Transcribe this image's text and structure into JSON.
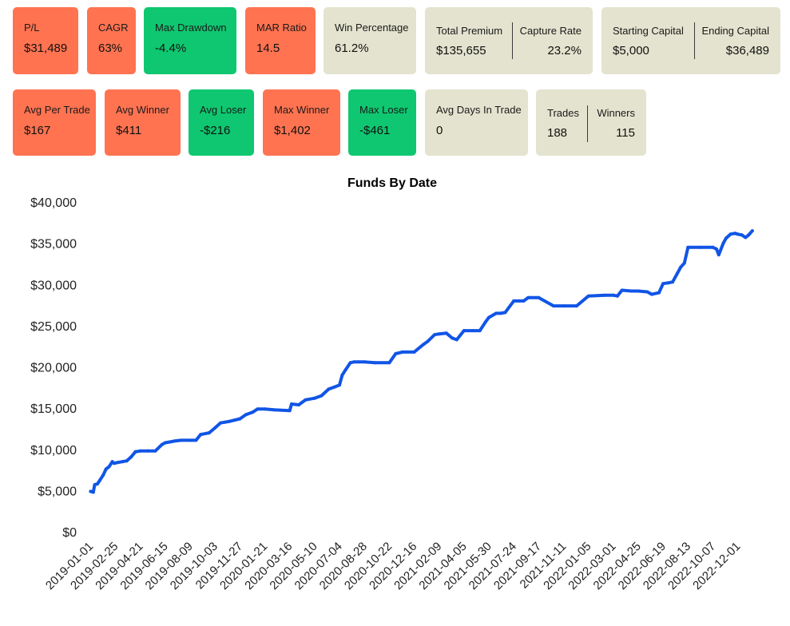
{
  "colors": {
    "orange": "#ff7351",
    "green": "#0fc770",
    "beige": "#e3e3cf",
    "line": "#1155e6"
  },
  "stats_row1": [
    {
      "key": "pl",
      "label": "P/L",
      "value": "$31,489",
      "color": "orange"
    },
    {
      "key": "cagr",
      "label": "CAGR",
      "value": "63%",
      "color": "orange"
    },
    {
      "key": "max_drawdown",
      "label": "Max Drawdown",
      "value": "-4.4%",
      "color": "green"
    },
    {
      "key": "mar_ratio",
      "label": "MAR Ratio",
      "value": "14.5",
      "color": "orange"
    },
    {
      "key": "win_percentage",
      "label": "Win Percentage",
      "value": "61.2%",
      "color": "beige"
    }
  ],
  "premium_card": {
    "left_label": "Total Premium",
    "left_value": "$135,655",
    "right_label": "Capture Rate",
    "right_value": "23.2%"
  },
  "capital_card": {
    "left_label": "Starting Capital",
    "left_value": "$5,000",
    "right_label": "Ending Capital",
    "right_value": "$36,489"
  },
  "stats_row2": [
    {
      "key": "avg_per_trade",
      "label": "Avg Per Trade",
      "value": "$167",
      "color": "orange"
    },
    {
      "key": "avg_winner",
      "label": "Avg Winner",
      "value": "$411",
      "color": "orange"
    },
    {
      "key": "avg_loser",
      "label": "Avg Loser",
      "value": "-$216",
      "color": "green"
    },
    {
      "key": "max_winner",
      "label": "Max Winner",
      "value": "$1,402",
      "color": "orange"
    },
    {
      "key": "max_loser",
      "label": "Max Loser",
      "value": "-$461",
      "color": "green"
    },
    {
      "key": "avg_days",
      "label": "Avg Days In Trade",
      "value": "0",
      "color": "beige"
    }
  ],
  "trades_card": {
    "left_label": "Trades",
    "left_value": "188",
    "right_label": "Winners",
    "right_value": "115"
  },
  "chart_data": {
    "type": "line",
    "title": "Funds By Date",
    "xlabel": "",
    "ylabel": "",
    "ylim": [
      0,
      40000
    ],
    "yticks": [
      0,
      5000,
      10000,
      15000,
      20000,
      25000,
      30000,
      35000,
      40000
    ],
    "ytick_labels": [
      "$0",
      "$5,000",
      "$10,000",
      "$15,000",
      "$20,000",
      "$25,000",
      "$30,000",
      "$35,000",
      "$40,000"
    ],
    "xticks": [
      "2019-01-01",
      "2019-02-25",
      "2019-04-21",
      "2019-06-15",
      "2019-08-09",
      "2019-10-03",
      "2019-11-27",
      "2020-01-21",
      "2020-03-16",
      "2020-05-10",
      "2020-07-04",
      "2020-08-28",
      "2020-10-22",
      "2020-12-16",
      "2021-02-09",
      "2021-04-05",
      "2021-05-30",
      "2021-07-24",
      "2021-09-17",
      "2021-11-11",
      "2022-01-05",
      "2022-03-01",
      "2022-04-25",
      "2022-06-19",
      "2022-08-13",
      "2022-10-07",
      "2022-12-01"
    ],
    "xlim": [
      "2018-12-26",
      "2023-01-13"
    ],
    "grid": false,
    "series": [
      {
        "color": "#1155e6",
        "x": [
          "2019-01-01",
          "2019-01-07",
          "2019-01-10",
          "2019-01-16",
          "2019-01-22",
          "2019-01-29",
          "2019-02-04",
          "2019-02-11",
          "2019-02-18",
          "2019-02-22",
          "2019-03-01",
          "2019-03-12",
          "2019-03-22",
          "2019-04-01",
          "2019-04-10",
          "2019-04-21",
          "2019-05-08",
          "2019-05-24",
          "2019-06-08",
          "2019-06-15",
          "2019-06-25",
          "2019-07-05",
          "2019-07-20",
          "2019-08-09",
          "2019-08-22",
          "2019-09-01",
          "2019-09-20",
          "2019-10-03",
          "2019-10-15",
          "2019-10-25",
          "2019-11-05",
          "2019-11-27",
          "2019-12-10",
          "2019-12-25",
          "2020-01-05",
          "2020-01-21",
          "2020-02-10",
          "2020-03-16",
          "2020-03-20",
          "2020-04-05",
          "2020-04-20",
          "2020-05-10",
          "2020-05-25",
          "2020-06-10",
          "2020-06-25",
          "2020-07-04",
          "2020-07-10",
          "2020-07-18",
          "2020-07-28",
          "2020-08-05",
          "2020-08-15",
          "2020-08-28",
          "2020-09-20",
          "2020-10-22",
          "2020-11-05",
          "2020-11-20",
          "2020-12-16",
          "2021-01-05",
          "2021-01-15",
          "2021-01-30",
          "2021-02-09",
          "2021-02-25",
          "2021-03-10",
          "2021-03-20",
          "2021-04-05",
          "2021-04-25",
          "2021-05-10",
          "2021-05-22",
          "2021-05-30",
          "2021-06-15",
          "2021-06-25",
          "2021-07-05",
          "2021-07-24",
          "2021-08-05",
          "2021-08-15",
          "2021-08-25",
          "2021-09-17",
          "2021-10-20",
          "2021-11-11",
          "2021-12-10",
          "2022-01-05",
          "2022-02-10",
          "2022-03-01",
          "2022-03-10",
          "2022-03-20",
          "2022-04-10",
          "2022-04-25",
          "2022-05-15",
          "2022-05-25",
          "2022-06-10",
          "2022-06-19",
          "2022-07-01",
          "2022-07-10",
          "2022-07-20",
          "2022-07-28",
          "2022-08-05",
          "2022-08-13",
          "2022-09-10",
          "2022-10-07",
          "2022-10-15",
          "2022-10-20",
          "2022-10-30",
          "2022-11-05",
          "2022-11-15",
          "2022-11-25",
          "2022-12-01",
          "2022-12-10",
          "2022-12-18",
          "2022-12-25",
          "2023-01-02"
        ],
        "y": [
          4900,
          4800,
          5700,
          5800,
          6300,
          6900,
          7600,
          7900,
          8500,
          8300,
          8400,
          8500,
          8600,
          9100,
          9700,
          9800,
          9800,
          9800,
          10600,
          10800,
          10900,
          11000,
          11100,
          11100,
          11100,
          11800,
          12000,
          12600,
          13200,
          13300,
          13400,
          13700,
          14200,
          14500,
          14900,
          14900,
          14800,
          14700,
          15500,
          15400,
          16000,
          16200,
          16500,
          17300,
          17600,
          17800,
          19000,
          19700,
          20500,
          20600,
          20600,
          20600,
          20500,
          20500,
          21600,
          21800,
          21800,
          22700,
          23100,
          23900,
          24000,
          24100,
          23500,
          23300,
          24400,
          24400,
          24400,
          25400,
          26000,
          26500,
          26500,
          26600,
          28000,
          28000,
          28000,
          28400,
          28400,
          27400,
          27400,
          27400,
          28600,
          28700,
          28700,
          28600,
          29300,
          29200,
          29200,
          29100,
          28800,
          29000,
          30100,
          30200,
          30300,
          31300,
          32100,
          32600,
          34500,
          34500,
          34500,
          34300,
          33600,
          35000,
          35600,
          36100,
          36200,
          36100,
          36000,
          35700,
          36000,
          36500
        ]
      }
    ]
  }
}
